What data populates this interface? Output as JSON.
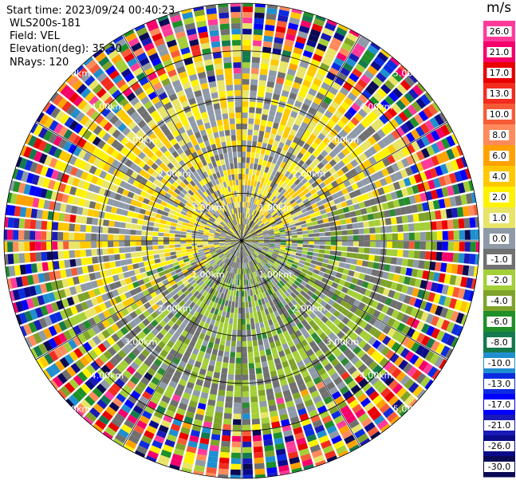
{
  "info": {
    "start_time": "Start time: 2023/09/24 00:40:23",
    "site": "WLS200s-181",
    "field": "Field: VEL",
    "elevation": "Elevation(deg): 35.30",
    "nrays": "NRays: 120"
  },
  "chart_data": {
    "type": "heatmap",
    "plot_kind": "PPI polar scan",
    "field": "VEL",
    "units": "m/s",
    "n_rays": 120,
    "elevation_deg": 35.3,
    "range_rings_km": [
      1,
      2,
      3,
      4,
      5
    ],
    "ring_labels": [
      "1.00km",
      "2.00km",
      "3.00km",
      "4.00km",
      "5.00km"
    ],
    "azimuth_lines_deg": [
      0,
      30,
      60,
      90,
      120,
      150,
      180,
      210,
      240,
      270,
      300,
      330
    ],
    "colorbar_ticks": [
      "26.0",
      "21.0",
      "17.0",
      "13.0",
      "10.0",
      "8.0",
      "6.0",
      "4.0",
      "2.0",
      "1.0",
      "0.0",
      "-1.0",
      "-2.0",
      "-4.0",
      "-6.0",
      "-8.0",
      "-10.0",
      "-13.0",
      "-17.0",
      "-21.0",
      "-26.0",
      "-30.0"
    ],
    "colorbar_colors": [
      "#ff3b9a",
      "#f5006a",
      "#ea0000",
      "#f22c1e",
      "#f65b37",
      "#ff8a5b",
      "#ffa200",
      "#ffc800",
      "#fff200",
      "#e8e468",
      "#8f9aa8",
      "#707070",
      "#a4cf38",
      "#7fa32a",
      "#1f8f2a",
      "#147a4e",
      "#1f8fd0",
      "#0c2ce0",
      "#0000ff",
      "#1a1ab8",
      "#0b0b8a",
      "#0a0a55"
    ],
    "colorbar_range": [
      -30.0,
      30.0
    ],
    "sector_pattern": [
      {
        "region": "north / north-west inner",
        "value_range": [
          1.0,
          4.0
        ]
      },
      {
        "region": "south / east inner",
        "value_range": [
          -4.0,
          -1.0
        ]
      },
      {
        "region": "near-zero scattered",
        "value_range": [
          -1.0,
          1.0
        ]
      },
      {
        "region": "outer rings beyond ~4km",
        "value_range": [
          -30.0,
          30.0
        ]
      }
    ]
  }
}
